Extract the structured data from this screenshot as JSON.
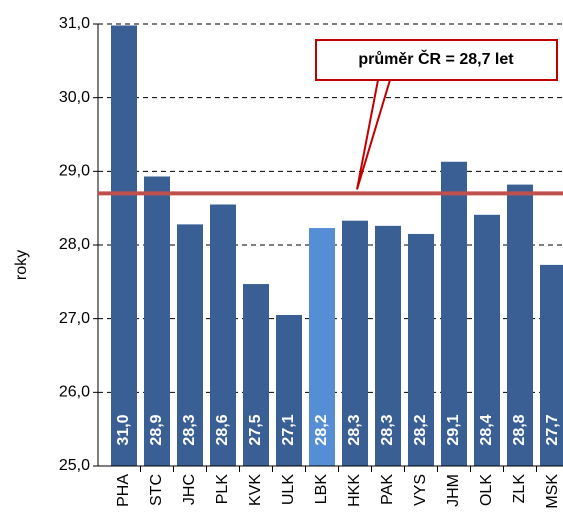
{
  "chart_data": {
    "type": "bar",
    "y_label": "roky",
    "categories": [
      "PHA",
      "STC",
      "JHC",
      "PLK",
      "KVK",
      "ULK",
      "LBK",
      "HKK",
      "PAK",
      "VYS",
      "JHM",
      "OLK",
      "ZLK",
      "MSK"
    ],
    "values": [
      30.98,
      28.93,
      28.28,
      28.55,
      27.47,
      27.05,
      28.23,
      28.33,
      28.26,
      28.15,
      29.13,
      28.41,
      28.82,
      27.73
    ],
    "value_labels": [
      "31,0",
      "28,9",
      "28,3",
      "28,6",
      "27,5",
      "27,1",
      "28,2",
      "28,3",
      "28,3",
      "28,2",
      "29,1",
      "28,4",
      "28,8",
      "27,7"
    ],
    "colors": [
      "#3a5f95",
      "#3a5f95",
      "#3a5f95",
      "#3a5f95",
      "#3a5f95",
      "#3a5f95",
      "#558ed5",
      "#3a5f95",
      "#3a5f95",
      "#3a5f95",
      "#3a5f95",
      "#3a5f95",
      "#3a5f95",
      "#3a5f95"
    ],
    "ylim": [
      25,
      31
    ],
    "yticks": [
      {
        "value": 25,
        "label": "25,0"
      },
      {
        "value": 26,
        "label": "26,0"
      },
      {
        "value": 27,
        "label": "27,0"
      },
      {
        "value": 28,
        "label": "28,0"
      },
      {
        "value": 29,
        "label": "29,0"
      },
      {
        "value": 30,
        "label": "30,0"
      },
      {
        "value": 31,
        "label": "31,0"
      }
    ],
    "grid": true,
    "average": 28.7,
    "average_color": "#c0504d",
    "annotation": "průměr ČR = 28,7 let"
  }
}
